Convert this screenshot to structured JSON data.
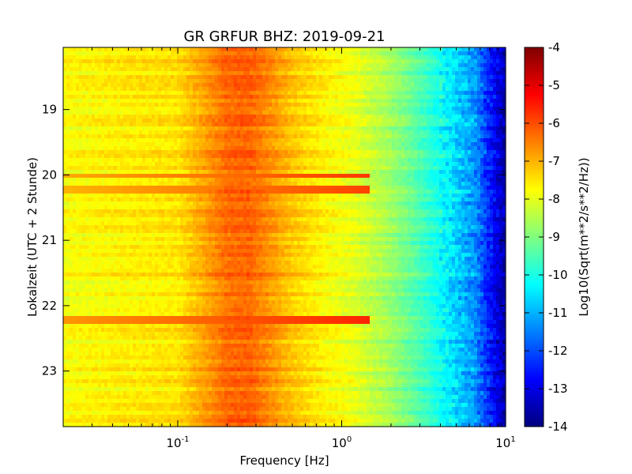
{
  "chart_data": {
    "type": "heatmap",
    "title": "GR GRFUR BHZ: 2019-09-21",
    "xlabel": "Frequency [Hz]",
    "ylabel": "Lokalzeit (UTC + 2 Stunde)",
    "x_scale": "log",
    "xlim": [
      0.02,
      10
    ],
    "x_ticks": [
      {
        "value": 0.1,
        "base": "10",
        "exp": "-1"
      },
      {
        "value": 1,
        "base": "10",
        "exp": "0"
      },
      {
        "value": 10,
        "base": "10",
        "exp": "1"
      }
    ],
    "ylim": [
      18.05,
      23.85
    ],
    "y_inverted": true,
    "y_ticks": [
      "19",
      "20",
      "21",
      "22",
      "23"
    ],
    "y_tick_values": [
      19,
      20,
      21,
      22,
      23
    ],
    "colorbar": {
      "label": "Log10(Sqrt(m**2/s**2/Hz))",
      "colormap": "jet",
      "range": [
        -14,
        -4
      ],
      "ticks": [
        "-4",
        "-5",
        "-6",
        "-7",
        "-8",
        "-9",
        "-10",
        "-11",
        "-12",
        "-13",
        "-14"
      ],
      "tick_values": [
        -4,
        -5,
        -6,
        -7,
        -8,
        -9,
        -10,
        -11,
        -12,
        -13,
        -14
      ]
    },
    "spectrum_profile": [
      {
        "freq": 0.02,
        "value": -7.8
      },
      {
        "freq": 0.05,
        "value": -7.6
      },
      {
        "freq": 0.1,
        "value": -7.5
      },
      {
        "freq": 0.15,
        "value": -6.8
      },
      {
        "freq": 0.2,
        "value": -6.3
      },
      {
        "freq": 0.27,
        "value": -6.2
      },
      {
        "freq": 0.35,
        "value": -6.6
      },
      {
        "freq": 0.5,
        "value": -7.2
      },
      {
        "freq": 0.8,
        "value": -7.7
      },
      {
        "freq": 1.2,
        "value": -8.0
      },
      {
        "freq": 2.0,
        "value": -8.7
      },
      {
        "freq": 3.0,
        "value": -9.5
      },
      {
        "freq": 4.5,
        "value": -10.4
      },
      {
        "freq": 6.5,
        "value": -11.3
      },
      {
        "freq": 8.5,
        "value": -12.8
      },
      {
        "freq": 10,
        "value": -13.6
      }
    ],
    "bright_events": [
      {
        "time": 20.0,
        "value": -6.5
      },
      {
        "time": 20.23,
        "value": -6.6
      },
      {
        "time": 22.23,
        "value": -6.3
      }
    ]
  }
}
